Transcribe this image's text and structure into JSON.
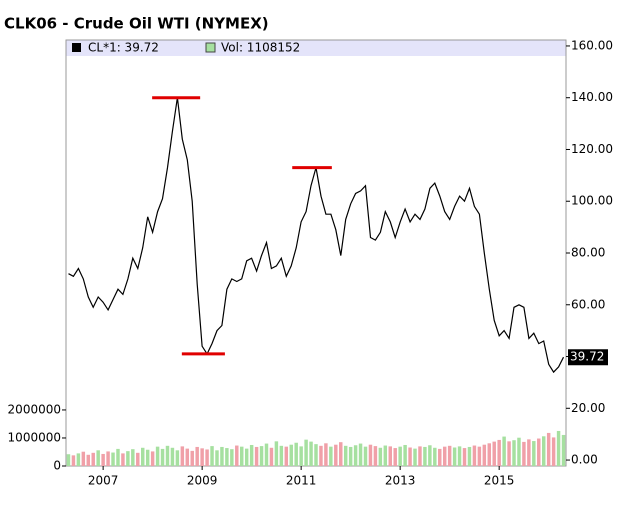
{
  "chart_data": {
    "type": "line",
    "title": "CLK06 - Crude Oil WTI (NYMEX)",
    "legend": [
      "CL*1: 39.72",
      "Vol: 1108152"
    ],
    "x": [
      2006.3,
      2006.4,
      2006.5,
      2006.6,
      2006.7,
      2006.8,
      2006.9,
      2007.0,
      2007.1,
      2007.2,
      2007.3,
      2007.4,
      2007.5,
      2007.6,
      2007.7,
      2007.8,
      2007.9,
      2008.0,
      2008.1,
      2008.2,
      2008.3,
      2008.4,
      2008.5,
      2008.6,
      2008.7,
      2008.8,
      2008.9,
      2009.0,
      2009.1,
      2009.2,
      2009.3,
      2009.4,
      2009.5,
      2009.6,
      2009.7,
      2009.8,
      2009.9,
      2010.0,
      2010.1,
      2010.2,
      2010.3,
      2010.4,
      2010.5,
      2010.6,
      2010.7,
      2010.8,
      2010.9,
      2011.0,
      2011.1,
      2011.2,
      2011.3,
      2011.4,
      2011.5,
      2011.6,
      2011.7,
      2011.8,
      2011.9,
      2012.0,
      2012.1,
      2012.2,
      2012.3,
      2012.4,
      2012.5,
      2012.6,
      2012.7,
      2012.8,
      2012.9,
      2013.0,
      2013.1,
      2013.2,
      2013.3,
      2013.4,
      2013.5,
      2013.6,
      2013.7,
      2013.8,
      2013.9,
      2014.0,
      2014.1,
      2014.2,
      2014.3,
      2014.4,
      2014.5,
      2014.6,
      2014.7,
      2014.8,
      2014.9,
      2015.0,
      2015.1,
      2015.2,
      2015.3,
      2015.4,
      2015.5,
      2015.6,
      2015.7,
      2015.8,
      2015.9,
      2016.0,
      2016.1,
      2016.2,
      2016.3
    ],
    "series": [
      {
        "name": "CL*1",
        "color": "#000000",
        "values": [
          72,
          71,
          74,
          70,
          63,
          59,
          63,
          61,
          58,
          62,
          66,
          64,
          70,
          78,
          74,
          82,
          94,
          88,
          96,
          101,
          113,
          127,
          140,
          124,
          116,
          100,
          68,
          44,
          41,
          45,
          50,
          52,
          66,
          70,
          69,
          70,
          77,
          78,
          73,
          79,
          84,
          74,
          75,
          78,
          71,
          75,
          82,
          92,
          96,
          106,
          113,
          102,
          95,
          95,
          89,
          79,
          93,
          99,
          103,
          104,
          106,
          86,
          85,
          88,
          96,
          92,
          86,
          92,
          97,
          92,
          95,
          93,
          97,
          105,
          107,
          102,
          96,
          93,
          98,
          102,
          100,
          105,
          98,
          95,
          80,
          66,
          54,
          48,
          50,
          47,
          59,
          60,
          59,
          47,
          49,
          45,
          46,
          37,
          34,
          36,
          39.72
        ]
      },
      {
        "name": "Vol",
        "axis": "y2",
        "values": [
          420000,
          380000,
          450000,
          510000,
          400000,
          470000,
          560000,
          430000,
          520000,
          480000,
          610000,
          450000,
          530000,
          600000,
          470000,
          650000,
          580000,
          520000,
          690000,
          610000,
          720000,
          650000,
          560000,
          700000,
          620000,
          540000,
          680000,
          630000,
          590000,
          710000,
          560000,
          680000,
          640000,
          600000,
          730000,
          690000,
          620000,
          750000,
          680000,
          710000,
          800000,
          650000,
          880000,
          720000,
          690000,
          760000,
          830000,
          700000,
          940000,
          870000,
          780000,
          720000,
          810000,
          690000,
          760000,
          850000,
          720000,
          680000,
          740000,
          800000,
          690000,
          760000,
          710000,
          650000,
          730000,
          700000,
          640000,
          690000,
          750000,
          660000,
          620000,
          700000,
          680000,
          740000,
          650000,
          610000,
          690000,
          720000,
          660000,
          700000,
          640000,
          680000,
          730000,
          690000,
          760000,
          810000,
          870000,
          930000,
          1050000,
          880000,
          920000,
          1010000,
          860000,
          950000,
          890000,
          980000,
          1060000,
          1180000,
          1020000,
          1250000,
          1108152
        ]
      }
    ],
    "up_color": "#a6e0a0",
    "down_color": "#f0a0a8",
    "annotations": [
      {
        "y": 140,
        "x": [
          2007.99,
          2008.96
        ],
        "color": "#e00000"
      },
      {
        "y": 41,
        "x": [
          2008.59,
          2009.46
        ],
        "color": "#e00000"
      },
      {
        "y": 113,
        "x": [
          2010.82,
          2011.62
        ],
        "color": "#e00000"
      }
    ],
    "xlim": [
      2006.25,
      2016.35
    ],
    "xticks": [
      2007,
      2009,
      2011,
      2013,
      2015
    ],
    "ylim": [
      -2.3,
      162.3
    ],
    "yticks": [
      {
        "value": 0,
        "label": "0.00"
      },
      {
        "value": 20,
        "label": "20.00"
      },
      {
        "value": 40,
        "label": "40.00"
      },
      {
        "value": 60,
        "label": "60.00"
      },
      {
        "value": 80,
        "label": "80.00"
      },
      {
        "value": 100,
        "label": "100.00"
      },
      {
        "value": 120,
        "label": "120.00"
      },
      {
        "value": 140,
        "label": "140.00"
      },
      {
        "value": 160,
        "label": "160.00"
      }
    ],
    "y2lim": [
      0,
      15200000
    ],
    "y2ticks": [
      0,
      1000000,
      2000000
    ]
  }
}
